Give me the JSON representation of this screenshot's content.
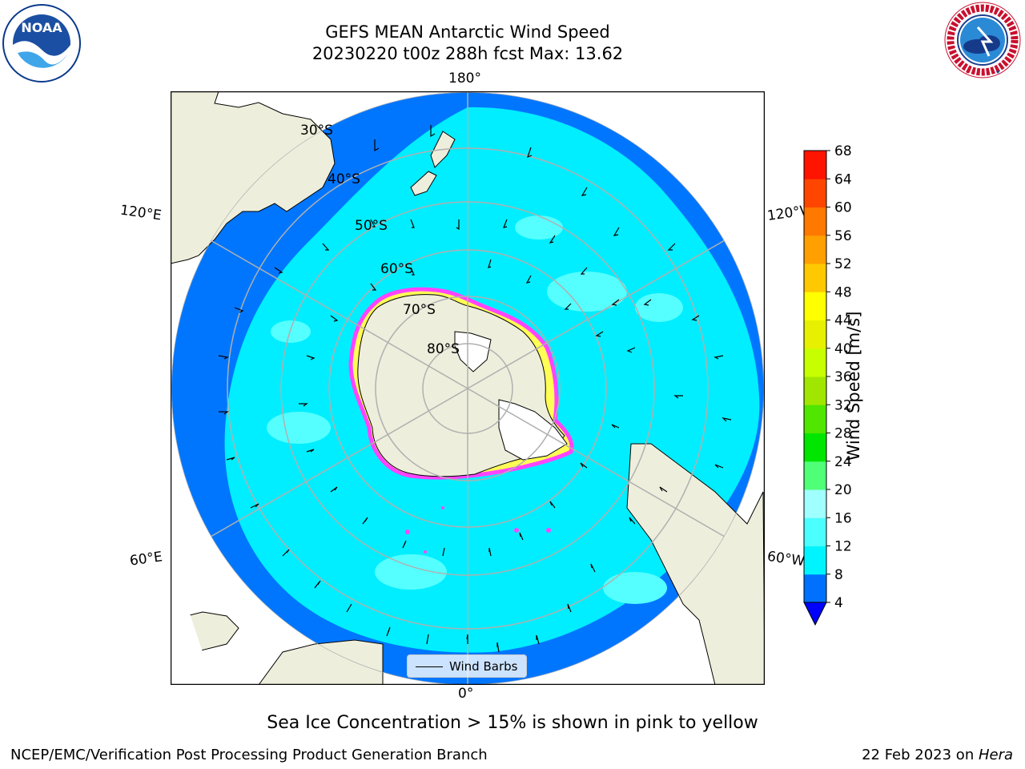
{
  "title": {
    "line1": "GEFS MEAN Antarctic Wind Speed",
    "line2": "20230220 t00z 288h fcst   Max: 13.62"
  },
  "logos": {
    "left": "noaa-logo",
    "left_text": "NOAA",
    "right": "nws-logo",
    "right_text": "NATIONAL WEATHER SERVICE"
  },
  "map": {
    "projection": "south-polar-stereographic",
    "longitude_labels": {
      "top": "180°",
      "bottom": "0°",
      "left_upper": "120°E",
      "left_lower": "60°E",
      "right_upper": "120°W",
      "right_lower": "60°W"
    },
    "latitude_labels": [
      "30°S",
      "40°S",
      "50°S",
      "60°S",
      "70°S",
      "80°S"
    ],
    "colors": {
      "ocean_dark": "#0076ff",
      "ocean_light": "#00eeff",
      "ocean_pale": "#55ffff",
      "land": "#eeeedc",
      "ice_edge": "#ff44ff",
      "ice_inner": "#ffff55",
      "gridline": "#b0b0b0"
    },
    "legend_label": "Wind Barbs"
  },
  "colorbar": {
    "label": "Wind Speed [m/s]",
    "ticks": [
      "4",
      "8",
      "12",
      "16",
      "20",
      "24",
      "28",
      "32",
      "36",
      "40",
      "44",
      "48",
      "52",
      "56",
      "60",
      "64",
      "68"
    ],
    "colors": [
      "#0070ff",
      "#00f4ff",
      "#4cffff",
      "#a0ffff",
      "#50ff78",
      "#00e600",
      "#50e600",
      "#a0e600",
      "#c8ff00",
      "#e6f000",
      "#ffff00",
      "#ffc800",
      "#ffa000",
      "#ff7800",
      "#ff4600",
      "#ff1400"
    ],
    "extend_color": "#0000ff"
  },
  "subtitle": "Sea Ice Concentration > 15% is shown in pink to yellow",
  "footer": {
    "left": "NCEP/EMC/Verification Post Processing Product Generation Branch",
    "right_date": "22 Feb 2023 on ",
    "right_host": "Hera"
  }
}
